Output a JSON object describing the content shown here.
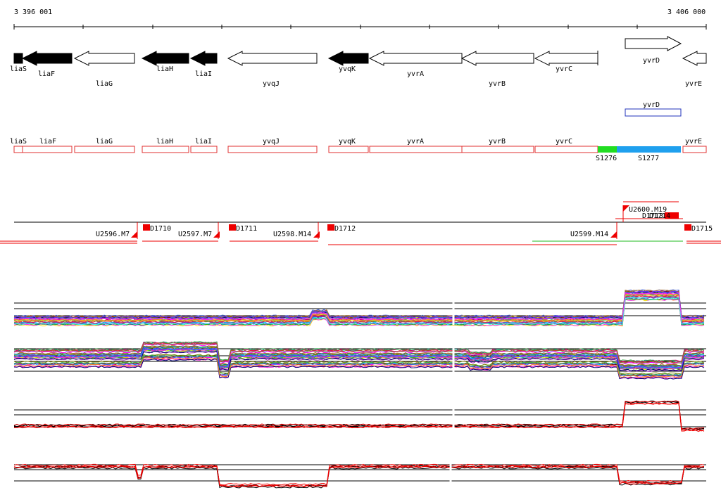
{
  "axis": {
    "start": "3 396 001",
    "end": "3 406 000"
  },
  "genes": [
    {
      "name": "liaS",
      "strand": "-",
      "filled": true
    },
    {
      "name": "liaF",
      "strand": "-",
      "filled": true
    },
    {
      "name": "liaG",
      "strand": "-",
      "filled": false
    },
    {
      "name": "liaH",
      "strand": "-",
      "filled": true
    },
    {
      "name": "liaI",
      "strand": "-",
      "filled": true
    },
    {
      "name": "yvqJ",
      "strand": "-",
      "filled": false
    },
    {
      "name": "yvqK",
      "strand": "-",
      "filled": true
    },
    {
      "name": "yvrA",
      "strand": "-",
      "filled": false
    },
    {
      "name": "yvrB",
      "strand": "-",
      "filled": false
    },
    {
      "name": "yvrC",
      "strand": "-",
      "filled": false
    },
    {
      "name": "yvrD",
      "strand": "+",
      "filled": false
    },
    {
      "name": "yvrE",
      "strand": "-",
      "filled": false
    }
  ],
  "feature_boxes": [
    {
      "name": "yvrD"
    },
    {
      "name": "liaS"
    },
    {
      "name": "liaF"
    },
    {
      "name": "liaG"
    },
    {
      "name": "liaH"
    },
    {
      "name": "liaI"
    },
    {
      "name": "yvqJ"
    },
    {
      "name": "yvqK"
    },
    {
      "name": "yvrA"
    },
    {
      "name": "yvrB"
    },
    {
      "name": "yvrC"
    },
    {
      "name": "yvrE"
    }
  ],
  "segments": [
    {
      "name": "S1276",
      "color": "#22dd22"
    },
    {
      "name": "S1277",
      "color": "#1fa0ee"
    }
  ],
  "upstream_markers": [
    {
      "name": "U2596.M7"
    },
    {
      "name": "U2597.M7"
    },
    {
      "name": "U2598.M14"
    },
    {
      "name": "U2599.M14"
    },
    {
      "name": "U2600.M19"
    }
  ],
  "down_markers": [
    {
      "name": "D1710"
    },
    {
      "name": "D1711"
    },
    {
      "name": "D1712"
    },
    {
      "name": "D1713"
    },
    {
      "name": "D1714"
    },
    {
      "name": "D1715"
    }
  ],
  "colors": {
    "gene_fill": "#000000",
    "feature_box": "#e03030",
    "marker": "#ee0000",
    "yvrD_box": "#2233bb"
  }
}
